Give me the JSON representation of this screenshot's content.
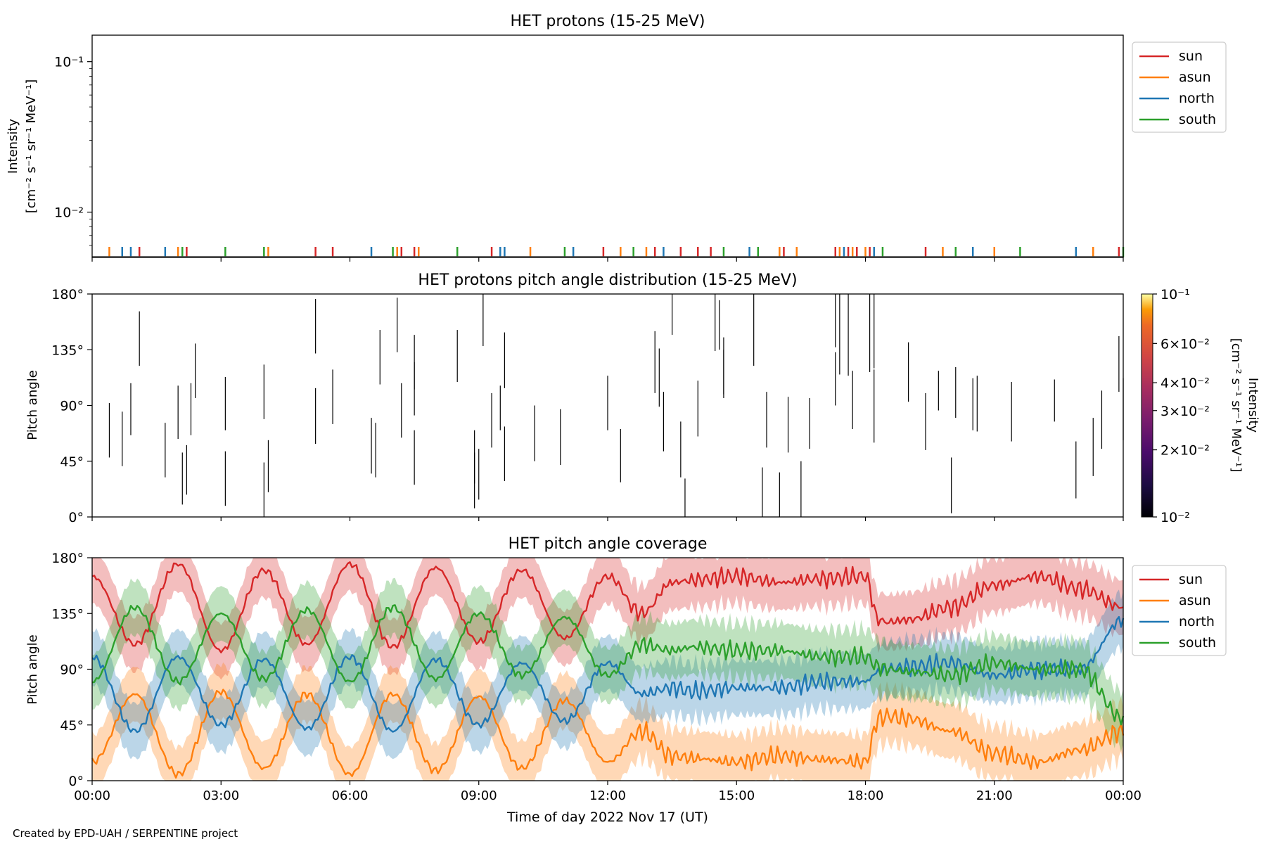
{
  "footer": "Created by EPD-UAH / SERPENTINE project",
  "colors": {
    "sun": "#d62728",
    "asun": "#ff7f0e",
    "north": "#1f77b4",
    "south": "#2ca02c"
  },
  "chart_data": [
    {
      "type": "line",
      "title": "HET protons (15-25 MeV)",
      "ylabel_line1": "Intensity",
      "ylabel_line2": "[cm⁻² s⁻¹ sr⁻¹ MeV⁻¹]",
      "yscale": "log",
      "ylim": [
        0.005,
        0.15
      ],
      "yticks": [
        {
          "value": 0.1,
          "label": "10⁻¹"
        },
        {
          "value": 0.01,
          "label": "10⁻²"
        }
      ],
      "xlim_hours": [
        0,
        24
      ],
      "legend": {
        "placement": "outside-right-top",
        "entries": [
          "sun",
          "asun",
          "north",
          "south"
        ]
      },
      "note": "sparse single-count spikes near the lower axis",
      "series": [
        {
          "name": "sun",
          "color": "#d62728",
          "spike_times_h": [
            1.1,
            2.2,
            5.2,
            5.6,
            7.2,
            7.5,
            9.3,
            11.9,
            13.1,
            13.7,
            14.1,
            14.4,
            16.1,
            17.3,
            17.6,
            17.8,
            18.1,
            19.4,
            23.9
          ]
        },
        {
          "name": "asun",
          "color": "#ff7f0e",
          "spike_times_h": [
            0.4,
            2.0,
            4.1,
            7.1,
            7.6,
            10.2,
            12.3,
            12.9,
            16.0,
            16.4,
            17.4,
            17.7,
            18.0,
            19.8,
            21.0,
            23.3
          ]
        },
        {
          "name": "north",
          "color": "#1f77b4",
          "spike_times_h": [
            0.7,
            0.9,
            1.7,
            6.5,
            9.5,
            9.6,
            11.2,
            13.3,
            15.3,
            17.5,
            18.2,
            20.5,
            22.9
          ]
        },
        {
          "name": "south",
          "color": "#2ca02c",
          "spike_times_h": [
            2.1,
            3.1,
            4.0,
            7.0,
            8.5,
            11.0,
            12.6,
            14.7,
            15.5,
            18.4,
            20.1,
            21.6,
            24.0
          ]
        }
      ]
    },
    {
      "type": "heatmap",
      "title": "HET protons pitch angle distribution (15-25 MeV)",
      "ylabel": "Pitch angle",
      "ylim": [
        0,
        180
      ],
      "yticks": [
        "0°",
        "45°",
        "90°",
        "135°",
        "180°"
      ],
      "colorbar": {
        "label_line1": "Intensity",
        "label_line2": "[cm⁻² s⁻¹ sr⁻¹ MeV⁻¹]",
        "scale": "log",
        "range": [
          0.01,
          0.1
        ],
        "colormap": "inferno",
        "ticks": [
          {
            "value": 0.1,
            "label": "10⁻¹"
          },
          {
            "value": 0.06,
            "label": "6×10⁻²"
          },
          {
            "value": 0.04,
            "label": "4×10⁻²"
          },
          {
            "value": 0.03,
            "label": "3×10⁻²"
          },
          {
            "value": 0.02,
            "label": "2×10⁻²"
          },
          {
            "value": 0.01,
            "label": "10⁻²"
          }
        ]
      },
      "segments": [
        [
          0.4,
          48,
          92
        ],
        [
          0.7,
          41,
          85
        ],
        [
          0.9,
          66,
          108
        ],
        [
          1.1,
          122,
          166
        ],
        [
          1.7,
          32,
          76
        ],
        [
          2.0,
          63,
          106
        ],
        [
          2.1,
          10,
          52
        ],
        [
          2.2,
          18,
          58
        ],
        [
          2.3,
          66,
          108
        ],
        [
          2.4,
          96,
          140
        ],
        [
          3.1,
          9,
          53
        ],
        [
          3.1,
          70,
          113
        ],
        [
          4.0,
          0,
          44
        ],
        [
          4.0,
          79,
          123
        ],
        [
          4.1,
          20,
          62
        ],
        [
          5.2,
          59,
          104
        ],
        [
          5.2,
          132,
          176
        ],
        [
          5.6,
          75,
          119
        ],
        [
          6.5,
          35,
          80
        ],
        [
          6.6,
          32,
          76
        ],
        [
          6.7,
          107,
          151
        ],
        [
          7.1,
          133,
          177
        ],
        [
          7.2,
          64,
          108
        ],
        [
          7.5,
          26,
          70
        ],
        [
          7.5,
          103,
          147
        ],
        [
          7.5,
          82,
          125
        ],
        [
          8.5,
          109,
          151
        ],
        [
          8.9,
          27,
          70
        ],
        [
          8.9,
          7,
          52
        ],
        [
          9.0,
          14,
          55
        ],
        [
          9.1,
          138,
          180
        ],
        [
          9.3,
          56,
          100
        ],
        [
          9.5,
          70,
          106
        ],
        [
          9.6,
          29,
          73
        ],
        [
          9.6,
          104,
          149
        ],
        [
          10.3,
          45,
          90
        ],
        [
          10.9,
          42,
          87
        ],
        [
          12.0,
          70,
          114
        ],
        [
          12.3,
          28,
          71
        ],
        [
          13.1,
          100,
          150
        ],
        [
          13.2,
          89,
          136
        ],
        [
          13.3,
          53,
          101
        ],
        [
          13.5,
          147,
          180
        ],
        [
          13.7,
          32,
          77
        ],
        [
          13.8,
          0,
          31
        ],
        [
          14.1,
          65,
          110
        ],
        [
          14.5,
          134,
          180
        ],
        [
          14.6,
          135,
          175
        ],
        [
          14.7,
          96,
          135
        ],
        [
          14.7,
          99,
          145
        ],
        [
          15.4,
          122,
          180
        ],
        [
          15.6,
          0,
          40
        ],
        [
          15.7,
          56,
          101
        ],
        [
          16.0,
          0,
          36
        ],
        [
          16.2,
          52,
          97
        ],
        [
          16.5,
          0,
          45
        ],
        [
          16.7,
          55,
          96
        ],
        [
          17.3,
          137,
          180
        ],
        [
          17.3,
          90,
          133
        ],
        [
          17.4,
          115,
          180
        ],
        [
          17.6,
          114,
          180
        ],
        [
          17.7,
          71,
          118
        ],
        [
          18.1,
          117,
          180
        ],
        [
          18.2,
          120,
          180
        ],
        [
          18.2,
          60,
          119
        ],
        [
          19.0,
          93,
          141
        ],
        [
          19.4,
          54,
          100
        ],
        [
          19.7,
          86,
          118
        ],
        [
          20.0,
          3,
          48
        ],
        [
          20.1,
          80,
          121
        ],
        [
          20.5,
          70,
          112
        ],
        [
          20.6,
          69,
          114
        ],
        [
          21.4,
          61,
          109
        ],
        [
          22.4,
          77,
          111
        ],
        [
          22.9,
          15,
          61
        ],
        [
          23.3,
          33,
          80
        ],
        [
          23.5,
          55,
          102
        ],
        [
          23.9,
          101,
          146
        ],
        [
          24.0,
          62,
          112
        ]
      ]
    },
    {
      "type": "line",
      "title": "HET pitch angle coverage",
      "xlabel": "Time of day 2022 Nov 17 (UT)",
      "ylabel": "Pitch angle",
      "ylim": [
        0,
        180
      ],
      "yticks": [
        "0°",
        "45°",
        "90°",
        "135°",
        "180°"
      ],
      "xticks": [
        "00:00",
        "03:00",
        "06:00",
        "09:00",
        "12:00",
        "15:00",
        "18:00",
        "21:00",
        "00:00"
      ],
      "xlim_hours": [
        0,
        24
      ],
      "legend": {
        "placement": "outside-right-top",
        "entries": [
          "sun",
          "asun",
          "north",
          "south"
        ]
      },
      "series": [
        {
          "name": "sun",
          "color": "#d62728",
          "x_h": [
            0,
            1,
            2,
            3,
            4,
            5,
            6,
            7,
            8,
            9,
            10,
            11,
            12,
            12.8,
            13.5,
            14,
            15,
            16,
            17,
            18,
            18.3,
            18.5,
            19,
            20,
            21,
            22,
            23,
            24
          ],
          "y_deg": [
            165,
            110,
            175,
            105,
            170,
            110,
            175,
            108,
            172,
            112,
            170,
            115,
            165,
            135,
            160,
            162,
            165,
            160,
            163,
            165,
            130,
            128,
            130,
            140,
            158,
            165,
            155,
            140
          ]
        },
        {
          "name": "asun",
          "color": "#ff7f0e",
          "x_h": [
            0,
            1,
            2,
            3,
            4,
            5,
            6,
            7,
            8,
            9,
            10,
            11,
            12,
            12.8,
            13.5,
            14,
            15,
            16,
            17,
            18,
            18.3,
            18.5,
            19,
            20,
            21,
            22,
            23,
            24
          ],
          "y_deg": [
            15,
            70,
            5,
            72,
            10,
            70,
            5,
            70,
            8,
            68,
            10,
            65,
            15,
            40,
            20,
            18,
            15,
            20,
            17,
            15,
            50,
            52,
            50,
            40,
            22,
            15,
            25,
            40
          ]
        },
        {
          "name": "north",
          "color": "#1f77b4",
          "x_h": [
            0,
            1,
            2,
            3,
            4,
            5,
            6,
            7,
            8,
            9,
            10,
            11,
            12,
            12.8,
            13.5,
            14,
            15,
            16,
            17,
            18,
            18.3,
            18.5,
            19,
            20,
            21,
            22,
            23,
            24
          ],
          "y_deg": [
            100,
            40,
            100,
            45,
            98,
            42,
            100,
            40,
            98,
            45,
            95,
            48,
            95,
            70,
            75,
            72,
            75,
            75,
            80,
            80,
            88,
            90,
            92,
            95,
            85,
            90,
            90,
            130
          ]
        },
        {
          "name": "south",
          "color": "#2ca02c",
          "x_h": [
            0,
            1,
            2,
            3,
            4,
            5,
            6,
            7,
            8,
            9,
            10,
            11,
            12,
            12.8,
            13.5,
            14,
            15,
            16,
            17,
            18,
            18.3,
            18.5,
            19,
            20,
            21,
            22,
            23,
            24
          ],
          "y_deg": [
            80,
            140,
            80,
            135,
            82,
            138,
            80,
            140,
            82,
            135,
            85,
            132,
            85,
            110,
            105,
            108,
            105,
            105,
            100,
            100,
            92,
            90,
            88,
            85,
            95,
            90,
            90,
            50
          ]
        }
      ]
    }
  ]
}
